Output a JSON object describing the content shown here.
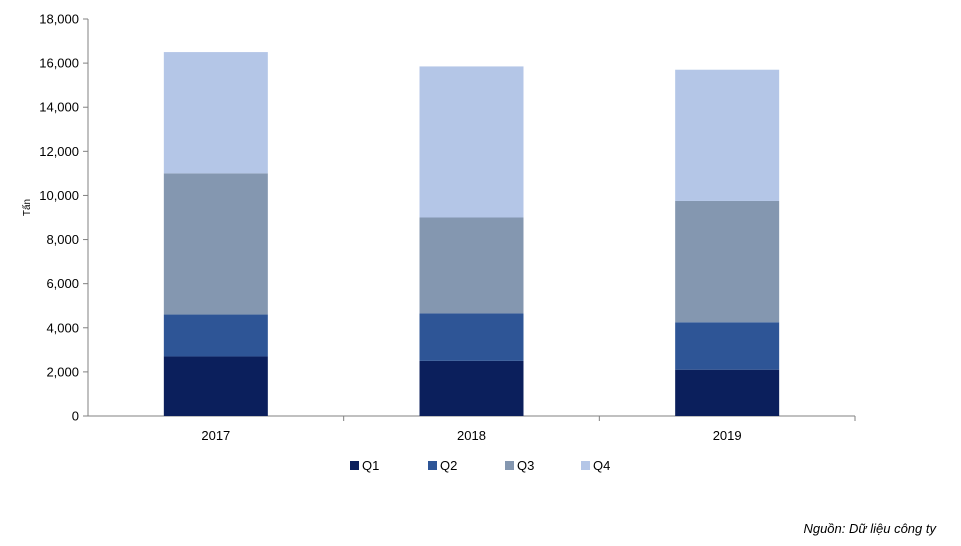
{
  "chart_data": {
    "type": "bar",
    "stacked": true,
    "categories": [
      "2017",
      "2018",
      "2019"
    ],
    "series": [
      {
        "name": "Q1",
        "color": "#0b1f5c",
        "values": [
          2700,
          2500,
          2100
        ]
      },
      {
        "name": "Q2",
        "color": "#2e5596",
        "values": [
          1900,
          2150,
          2150
        ]
      },
      {
        "name": "Q3",
        "color": "#8497b0",
        "values": [
          6400,
          4350,
          5500
        ]
      },
      {
        "name": "Q4",
        "color": "#b4c6e7",
        "values": [
          5500,
          6850,
          5950
        ]
      }
    ],
    "ylabel": "Tấn",
    "ylim": [
      0,
      18000
    ],
    "yticks": [
      "0",
      "2,000",
      "4,000",
      "6,000",
      "8,000",
      "10,000",
      "12,000",
      "14,000",
      "16,000",
      "18,000"
    ],
    "grid": false,
    "legend": "bottom"
  },
  "source_note": "Nguồn: Dữ liệu công ty"
}
